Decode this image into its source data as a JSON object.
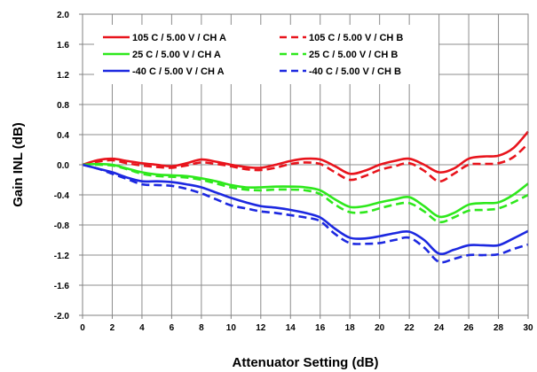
{
  "chart_data": {
    "type": "line",
    "xlabel": "Attenuator Setting (dB)",
    "ylabel": "Gain INL (dB)",
    "xlim": [
      0,
      30
    ],
    "ylim": [
      -2.0,
      2.0
    ],
    "xticks": [
      "0",
      "2",
      "4",
      "6",
      "8",
      "10",
      "12",
      "14",
      "16",
      "18",
      "20",
      "22",
      "24",
      "26",
      "28",
      "30"
    ],
    "yticks": [
      "2.0",
      "1.6",
      "1.2",
      "0.8",
      "0.4",
      "0.0",
      "-0.4",
      "-0.8",
      "-1.2",
      "-1.6",
      "-2.0"
    ],
    "grid": true,
    "legend_position": "top-left",
    "x": [
      0,
      1,
      2,
      3,
      4,
      5,
      6,
      7,
      8,
      9,
      10,
      11,
      12,
      13,
      14,
      15,
      16,
      17,
      18,
      19,
      20,
      21,
      22,
      23,
      24,
      25,
      26,
      27,
      28,
      29,
      30
    ],
    "series": [
      {
        "name": "105 C  / 5.00 V / CH A",
        "color": "#e8141c",
        "dash": "solid",
        "values": [
          0.0,
          0.06,
          0.08,
          0.05,
          0.02,
          0.0,
          -0.02,
          0.02,
          0.07,
          0.04,
          0.0,
          -0.03,
          -0.04,
          0.0,
          0.05,
          0.08,
          0.07,
          -0.02,
          -0.12,
          -0.08,
          0.0,
          0.05,
          0.08,
          0.0,
          -0.1,
          -0.05,
          0.08,
          0.11,
          0.12,
          0.22,
          0.44
        ]
      },
      {
        "name": "105 C  / 5.00 V / CH B",
        "color": "#e8141c",
        "dash": "dashed",
        "values": [
          0.0,
          0.04,
          0.06,
          0.02,
          -0.01,
          -0.03,
          -0.04,
          -0.01,
          0.03,
          0.01,
          -0.02,
          -0.06,
          -0.07,
          -0.04,
          0.01,
          0.03,
          0.01,
          -0.1,
          -0.2,
          -0.15,
          -0.07,
          -0.02,
          0.02,
          -0.08,
          -0.22,
          -0.12,
          0.0,
          0.01,
          0.02,
          0.1,
          0.28
        ]
      },
      {
        "name": "25 C  / 5.00 V / CH A",
        "color": "#2ee81c",
        "dash": "solid",
        "values": [
          0.0,
          0.01,
          0.0,
          -0.05,
          -0.1,
          -0.13,
          -0.14,
          -0.15,
          -0.18,
          -0.22,
          -0.27,
          -0.3,
          -0.3,
          -0.29,
          -0.29,
          -0.3,
          -0.34,
          -0.46,
          -0.56,
          -0.55,
          -0.5,
          -0.46,
          -0.43,
          -0.55,
          -0.69,
          -0.64,
          -0.53,
          -0.51,
          -0.5,
          -0.4,
          -0.25
        ]
      },
      {
        "name": "25 C  / 5.00 V / CH B",
        "color": "#2ee81c",
        "dash": "dashed",
        "values": [
          0.0,
          0.0,
          -0.01,
          -0.06,
          -0.12,
          -0.15,
          -0.16,
          -0.17,
          -0.2,
          -0.25,
          -0.3,
          -0.33,
          -0.34,
          -0.33,
          -0.33,
          -0.34,
          -0.39,
          -0.53,
          -0.63,
          -0.63,
          -0.58,
          -0.53,
          -0.51,
          -0.62,
          -0.76,
          -0.7,
          -0.61,
          -0.6,
          -0.58,
          -0.5,
          -0.4
        ]
      },
      {
        "name": "-40 C  / 5.00 V / CH A",
        "color": "#1c28e0",
        "dash": "solid",
        "values": [
          0.0,
          -0.05,
          -0.1,
          -0.17,
          -0.22,
          -0.22,
          -0.23,
          -0.26,
          -0.3,
          -0.37,
          -0.44,
          -0.5,
          -0.55,
          -0.57,
          -0.6,
          -0.64,
          -0.7,
          -0.85,
          -0.97,
          -0.98,
          -0.95,
          -0.91,
          -0.89,
          -1.0,
          -1.18,
          -1.13,
          -1.07,
          -1.07,
          -1.07,
          -0.98,
          -0.88
        ]
      },
      {
        "name": "-40 C  / 5.00 V / CH B",
        "color": "#1c28e0",
        "dash": "dashed",
        "values": [
          0.0,
          -0.05,
          -0.12,
          -0.19,
          -0.26,
          -0.27,
          -0.28,
          -0.32,
          -0.38,
          -0.46,
          -0.54,
          -0.58,
          -0.62,
          -0.64,
          -0.67,
          -0.7,
          -0.75,
          -0.92,
          -1.04,
          -1.05,
          -1.04,
          -1.0,
          -0.97,
          -1.1,
          -1.29,
          -1.25,
          -1.2,
          -1.2,
          -1.19,
          -1.12,
          -1.06
        ]
      }
    ]
  }
}
